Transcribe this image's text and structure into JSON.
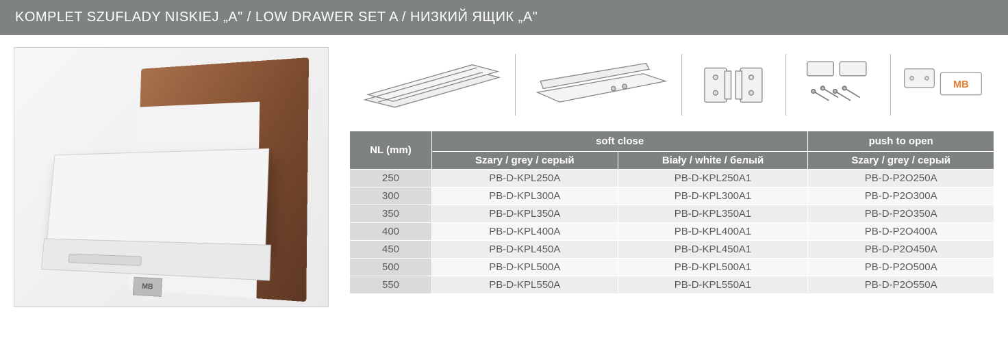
{
  "title": "KOMPLET SZUFLADY NISKIEJ „A\" / LOW DRAWER SET A / НИЗКИЙ ЯЩИК „A\"",
  "photo_badge": "MB",
  "part_icons": [
    "slides-icon",
    "side-panel-icon",
    "brackets-icon",
    "fittings-icon",
    "cover-plate-icon"
  ],
  "cover_label": "MB",
  "table": {
    "header_nl": "NL (mm)",
    "group_soft": "soft close",
    "group_push": "push to open",
    "col_grey": "Szary / grey / серый",
    "col_white": "Biały / white / белый",
    "col_push_grey": "Szary / grey / серый",
    "rows": [
      {
        "nl": "250",
        "grey": "PB-D-KPL250A",
        "white": "PB-D-KPL250A1",
        "push": "PB-D-P2O250A"
      },
      {
        "nl": "300",
        "grey": "PB-D-KPL300A",
        "white": "PB-D-KPL300A1",
        "push": "PB-D-P2O300A"
      },
      {
        "nl": "350",
        "grey": "PB-D-KPL350A",
        "white": "PB-D-KPL350A1",
        "push": "PB-D-P2O350A"
      },
      {
        "nl": "400",
        "grey": "PB-D-KPL400A",
        "white": "PB-D-KPL400A1",
        "push": "PB-D-P2O400A"
      },
      {
        "nl": "450",
        "grey": "PB-D-KPL450A",
        "white": "PB-D-KPL450A1",
        "push": "PB-D-P2O450A"
      },
      {
        "nl": "500",
        "grey": "PB-D-KPL500A",
        "white": "PB-D-KPL500A1",
        "push": "PB-D-P2O500A"
      },
      {
        "nl": "550",
        "grey": "PB-D-KPL550A",
        "white": "PB-D-KPL550A1",
        "push": "PB-D-P2O550A"
      }
    ]
  },
  "colors": {
    "header_bg": "#7f8283",
    "header_text": "#ffffff",
    "row_odd": "#ededed",
    "row_even": "#f7f7f7",
    "nl_cell": "#d9dadb",
    "text": "#5a5a5a",
    "accent": "#e67a2e"
  }
}
